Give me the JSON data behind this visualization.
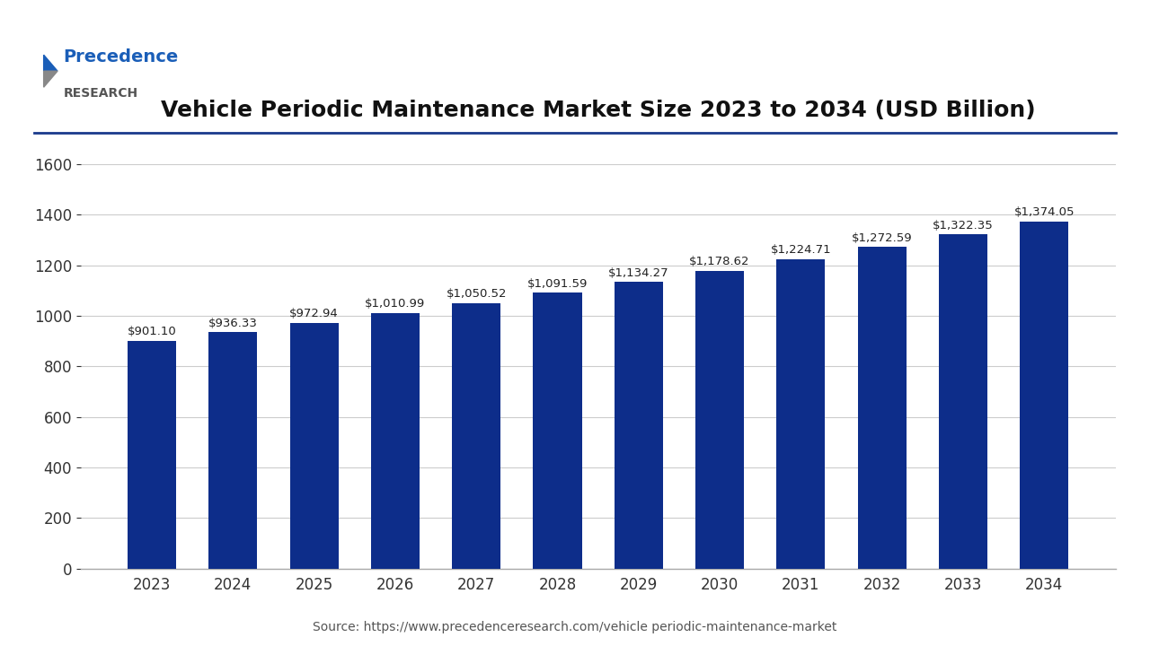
{
  "title": "Vehicle Periodic Maintenance Market Size 2023 to 2034 (USD Billion)",
  "years": [
    2023,
    2024,
    2025,
    2026,
    2027,
    2028,
    2029,
    2030,
    2031,
    2032,
    2033,
    2034
  ],
  "values": [
    901.1,
    936.33,
    972.94,
    1010.99,
    1050.52,
    1091.59,
    1134.27,
    1178.62,
    1224.71,
    1272.59,
    1322.35,
    1374.05
  ],
  "labels": [
    "$901.10",
    "$936.33",
    "$972.94",
    "$1,010.99",
    "$1,050.52",
    "$1,091.59",
    "$1,134.27",
    "$1,178.62",
    "$1,224.71",
    "$1,272.59",
    "$1,322.35",
    "$1,374.05"
  ],
  "bar_color": "#0d2d8a",
  "background_color": "#ffffff",
  "grid_color": "#cccccc",
  "yticks": [
    0,
    200,
    400,
    600,
    800,
    1000,
    1200,
    1400,
    1600
  ],
  "ylim": [
    0,
    1700
  ],
  "source_text": "Source: https://www.precedenceresearch.com/vehicle periodic-maintenance-market",
  "title_fontsize": 18,
  "label_fontsize": 9.5,
  "tick_fontsize": 12,
  "source_fontsize": 10,
  "logo_precedence_color": "#1a5eb8",
  "logo_research_color": "#555555",
  "separator_color": "#1a3a8c"
}
